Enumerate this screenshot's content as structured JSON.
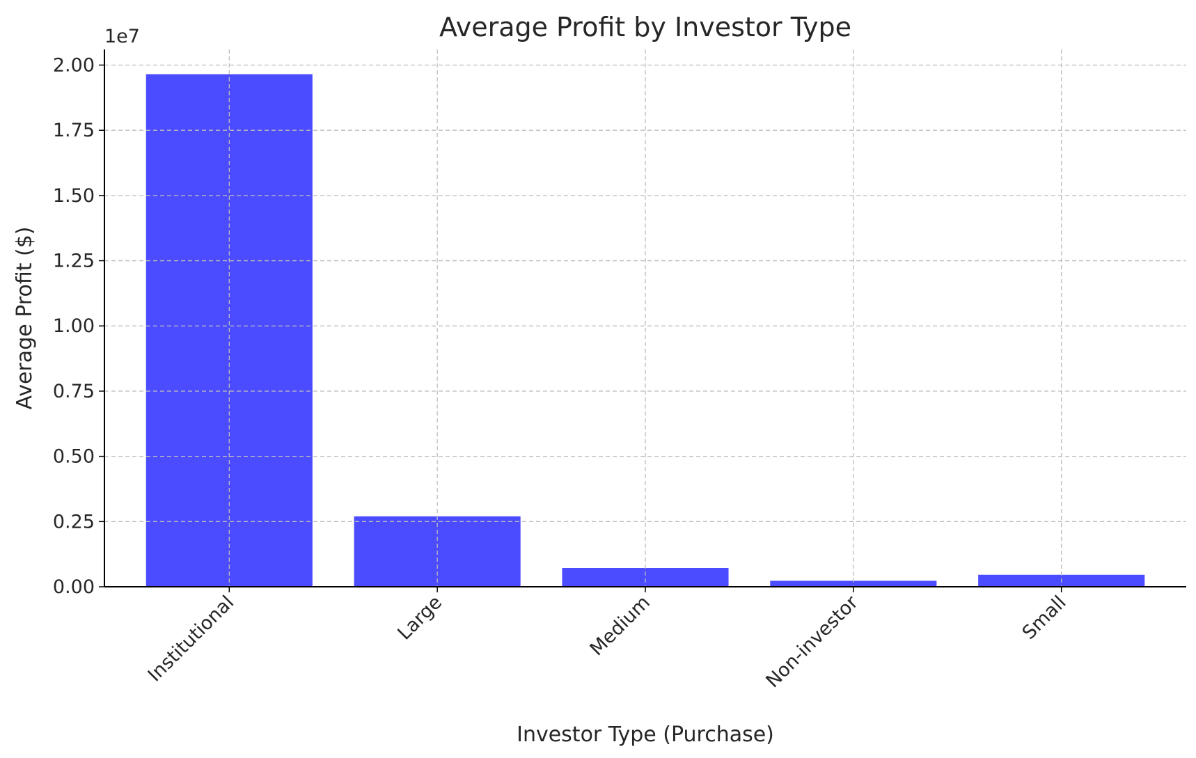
{
  "chart_data": {
    "type": "bar",
    "title": "Average Profit by Investor Type",
    "xlabel": "Investor Type (Purchase)",
    "ylabel": "Average Profit ($)",
    "offset_text": "1e7",
    "categories": [
      "Institutional",
      "Large",
      "Medium",
      "Non-investor",
      "Small"
    ],
    "values": [
      19650000,
      2700000,
      720000,
      230000,
      460000
    ],
    "ylim": [
      0,
      20600000
    ],
    "yticks": [
      0,
      2500000,
      5000000,
      7500000,
      10000000,
      12500000,
      15000000,
      17500000,
      20000000
    ],
    "ytick_labels": [
      "0.00",
      "0.25",
      "0.50",
      "0.75",
      "1.00",
      "1.25",
      "1.50",
      "1.75",
      "2.00"
    ],
    "bar_color": "#4b4bff",
    "grid": true,
    "legend": "none"
  }
}
